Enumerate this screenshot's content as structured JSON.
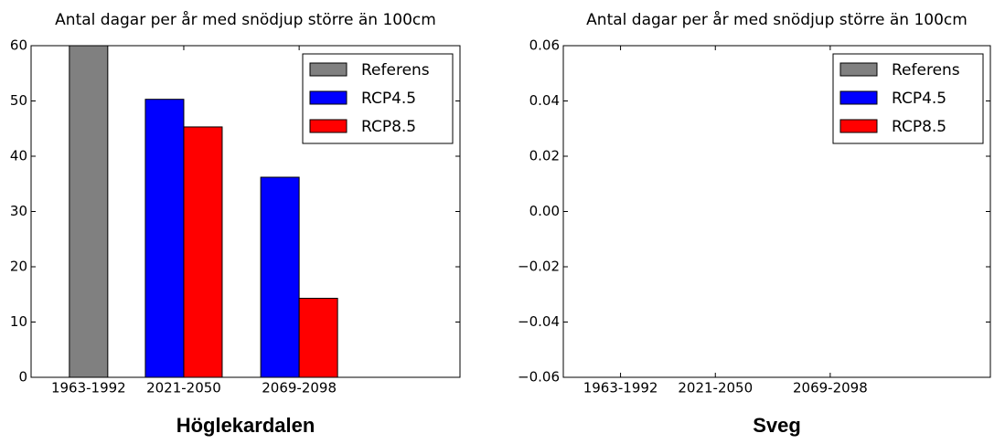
{
  "chart_data": [
    {
      "type": "bar",
      "title": "Antal dagar per år med snödjup större än 100cm",
      "xlabel": "Höglekardalen",
      "categories": [
        "1963-1992",
        "2021-2050",
        "2069-2098"
      ],
      "series": [
        {
          "name": "Referens",
          "color": "#808080",
          "values": [
            60,
            null,
            null
          ]
        },
        {
          "name": "RCP4.5",
          "color": "#0000ff",
          "values": [
            null,
            50.3,
            36.2
          ]
        },
        {
          "name": "RCP8.5",
          "color": "#ff0000",
          "values": [
            null,
            45.3,
            14.3
          ]
        }
      ],
      "ylim": [
        0,
        60
      ],
      "yticks": [
        0,
        10,
        20,
        30,
        40,
        50,
        60
      ],
      "legend": "upper right"
    },
    {
      "type": "bar",
      "title": "Antal dagar per år med snödjup större än 100cm",
      "xlabel": "Sveg",
      "categories": [
        "1963-1992",
        "2021-2050",
        "2069-2098"
      ],
      "series": [
        {
          "name": "Referens",
          "color": "#808080",
          "values": [
            0,
            null,
            null
          ]
        },
        {
          "name": "RCP4.5",
          "color": "#0000ff",
          "values": [
            null,
            0,
            0
          ]
        },
        {
          "name": "RCP8.5",
          "color": "#ff0000",
          "values": [
            null,
            0,
            0
          ]
        }
      ],
      "ylim": [
        -0.06,
        0.06
      ],
      "yticks": [
        {
          "value": -0.06,
          "label": "−0.06"
        },
        {
          "value": -0.04,
          "label": "−0.04"
        },
        {
          "value": -0.02,
          "label": "−0.02"
        },
        {
          "value": 0,
          "label": "0.00"
        },
        0.02,
        0.04,
        0.06
      ],
      "legend": "upper right"
    }
  ]
}
